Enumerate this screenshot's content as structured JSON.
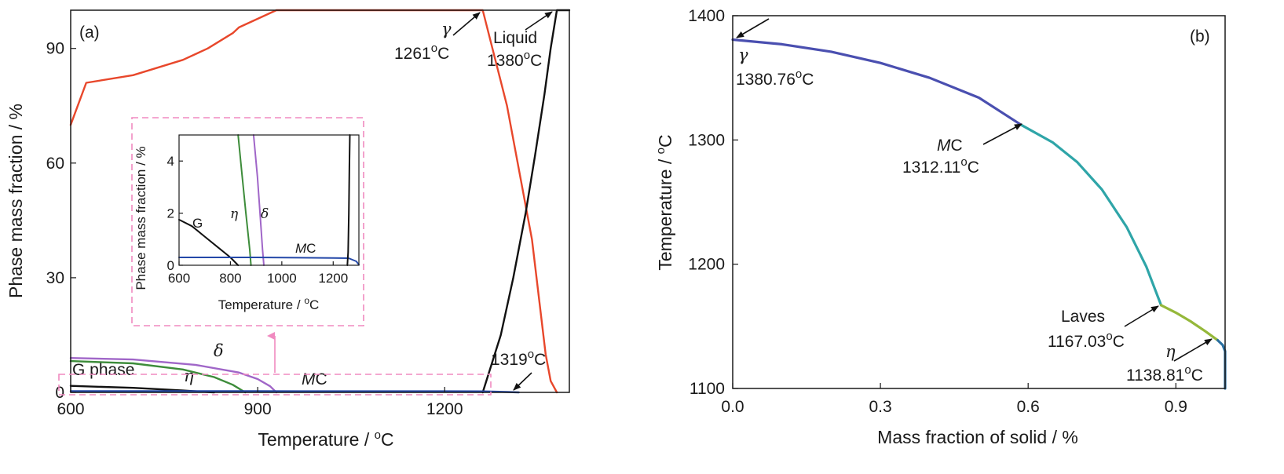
{
  "colors": {
    "gamma": "#e8472b",
    "liquid": "#111111",
    "delta": "#a066c8",
    "eta": "#3d8c3a",
    "gphase": "#111111",
    "mc": "#2448a8",
    "inset_box": "#f08ac0",
    "scheil_gamma": "#4a4fb0",
    "scheil_mc": "#2fa5a8",
    "scheil_laves": "#95b83a",
    "scheil_eta": "#2a6fa0"
  },
  "chart_data": [
    {
      "type": "line",
      "panel": "(a)",
      "xlabel": "Temperature / ",
      "xlabel_unit": "C",
      "xlabel_sup": "o",
      "ylabel": "Phase mass fraction / %",
      "xlim": [
        600,
        1400
      ],
      "ylim": [
        0,
        100
      ],
      "xticks": [
        "600",
        "900",
        "1200"
      ],
      "yticks": [
        "0",
        "30",
        "60",
        "90"
      ],
      "xtick_values": [
        600,
        900,
        1200
      ],
      "ytick_values": [
        0,
        30,
        60,
        90
      ],
      "series": [
        {
          "key": "gamma",
          "x": [
            600,
            625,
            700,
            780,
            820,
            860,
            870,
            930,
            1000,
            1100,
            1200,
            1261,
            1300,
            1340,
            1362,
            1370,
            1380
          ],
          "y": [
            70,
            81,
            83,
            87,
            90,
            94,
            95.5,
            100,
            100,
            100,
            100,
            100,
            75,
            40,
            10,
            3,
            0
          ]
        },
        {
          "key": "liquid",
          "x": [
            1261,
            1290,
            1310,
            1330,
            1345,
            1360,
            1370,
            1380,
            1400
          ],
          "y": [
            0,
            15,
            30,
            47,
            62,
            78,
            90,
            100,
            100
          ]
        },
        {
          "key": "delta",
          "x": [
            600,
            700,
            800,
            870,
            900,
            920,
            930
          ],
          "y": [
            9.0,
            8.6,
            7.2,
            5.2,
            3.5,
            1.6,
            0
          ]
        },
        {
          "key": "eta",
          "x": [
            600,
            700,
            780,
            830,
            860,
            880
          ],
          "y": [
            8.2,
            7.6,
            6.0,
            4.0,
            2.0,
            0
          ]
        },
        {
          "key": "gphase",
          "x": [
            600,
            700,
            780,
            830
          ],
          "y": [
            1.7,
            1.2,
            0.5,
            0
          ]
        },
        {
          "key": "mc",
          "x": [
            600,
            900,
            1200,
            1261,
            1300,
            1319
          ],
          "y": [
            0.3,
            0.3,
            0.28,
            0.26,
            0.1,
            0
          ]
        }
      ],
      "annotations": {
        "label": "(a)",
        "gamma_label": "γ",
        "gamma_temp": "1261",
        "gamma_unit": "C",
        "liquid_label": "Liquid",
        "liquid_temp": "1380",
        "liquid_unit": "C",
        "mc_temp": "1319",
        "mc_unit": "C",
        "gphase_label": "G phase",
        "delta_label": "δ",
        "eta_label": "η",
        "mc_label_m": "M",
        "mc_label_c": "C",
        "deg_sup": "o"
      }
    },
    {
      "type": "line",
      "panel": "inset",
      "xlabel": "Temperature / ",
      "xlabel_unit": "C",
      "xlabel_sup": "o",
      "ylabel": "Phase mass fraction / %",
      "xlim": [
        600,
        1300
      ],
      "ylim": [
        0,
        5
      ],
      "xticks": [
        "600",
        "800",
        "1000",
        "1200"
      ],
      "yticks": [
        "0",
        "2",
        "4"
      ],
      "xtick_values": [
        600,
        800,
        1000,
        1200
      ],
      "ytick_values": [
        0,
        2,
        4
      ],
      "series": [
        {
          "key": "gphase",
          "x": [
            600,
            650,
            700,
            750,
            800,
            830
          ],
          "y": [
            1.75,
            1.5,
            1.1,
            0.7,
            0.3,
            0
          ]
        },
        {
          "key": "eta",
          "x": [
            830,
            845,
            860,
            875,
            880
          ],
          "y": [
            5.0,
            3.5,
            2.0,
            0.6,
            0
          ]
        },
        {
          "key": "delta",
          "x": [
            890,
            905,
            915,
            925,
            930
          ],
          "y": [
            5.0,
            3.4,
            2.0,
            0.6,
            0
          ]
        },
        {
          "key": "mc",
          "x": [
            600,
            900,
            1200,
            1260,
            1290,
            1300
          ],
          "y": [
            0.3,
            0.3,
            0.28,
            0.27,
            0.15,
            0.02
          ]
        },
        {
          "key": "liquid",
          "x": [
            1255,
            1258,
            1261,
            1263,
            1265
          ],
          "y": [
            0,
            0.5,
            2.0,
            3.8,
            5.0
          ]
        }
      ],
      "annotations": {
        "g_label": "G",
        "eta_label": "η",
        "delta_label": "δ",
        "mc_label_m": "M",
        "mc_label_c": "C"
      }
    },
    {
      "type": "line",
      "panel": "(b)",
      "xlabel": "Mass fraction of solid / %",
      "ylabel": "Temperature / ",
      "ylabel_unit": "C",
      "ylabel_sup": "o",
      "xlim": [
        0,
        1
      ],
      "ylim": [
        1100,
        1400
      ],
      "xticks": [
        "0.0",
        "0.3",
        "0.6",
        "0.9"
      ],
      "yticks": [
        "1100",
        "1200",
        "1300",
        "1400"
      ],
      "xtick_values": [
        0,
        0.3,
        0.6,
        0.9
      ],
      "ytick_values": [
        1100,
        1200,
        1300,
        1400
      ],
      "series": [
        {
          "key": "scheil_gamma",
          "x": [
            0,
            0.1,
            0.2,
            0.3,
            0.4,
            0.5,
            0.586
          ],
          "y": [
            1380.76,
            1377,
            1371,
            1362,
            1350,
            1334,
            1312.11
          ]
        },
        {
          "key": "scheil_mc",
          "x": [
            0.586,
            0.65,
            0.7,
            0.75,
            0.8,
            0.84,
            0.87
          ],
          "y": [
            1312.11,
            1298,
            1282,
            1260,
            1230,
            1198,
            1167.03
          ]
        },
        {
          "key": "scheil_laves",
          "x": [
            0.87,
            0.9,
            0.93,
            0.96,
            0.985
          ],
          "y": [
            1167.03,
            1161,
            1154,
            1146,
            1138.81
          ]
        },
        {
          "key": "scheil_eta",
          "x": [
            0.985,
            0.995,
            1.0,
            1.0
          ],
          "y": [
            1138.81,
            1135,
            1130,
            1100
          ]
        }
      ],
      "annotations": {
        "label": "(b)",
        "gamma_label": "γ",
        "gamma_temp": "1380.76",
        "mc_label_m": "M",
        "mc_label_c": "C",
        "mc_temp": "1312.11",
        "laves_label": "Laves",
        "laves_temp": "1167.03",
        "eta_label": "η",
        "eta_temp": "1138.81",
        "deg_sup": "o",
        "deg_unit": "C"
      }
    }
  ]
}
